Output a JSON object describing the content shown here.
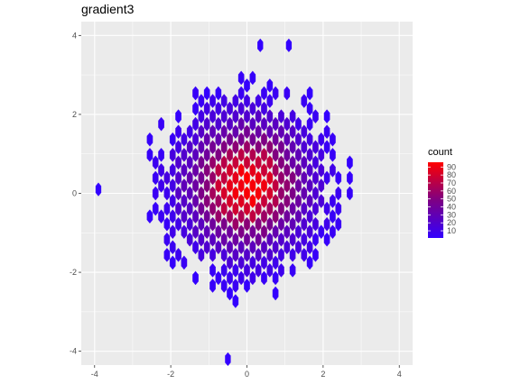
{
  "chart_data": {
    "type": "hexbin",
    "title": "gradient3",
    "xlabel": "",
    "ylabel": "",
    "xlim": [
      -4.35,
      4.35
    ],
    "ylim": [
      -4.35,
      4.35
    ],
    "x_ticks": [
      -4,
      -2,
      0,
      2,
      4
    ],
    "y_ticks": [
      -4,
      -2,
      0,
      2,
      4
    ],
    "grid": true,
    "panel_background": "#ebebeb",
    "gridline_color": "#ffffff",
    "color_scale": {
      "low": "#3300ff",
      "mid": "#800080",
      "high": "#ff0000",
      "midpoint": 50,
      "min": 1,
      "max": 96
    },
    "legend": {
      "title": "count",
      "position": "right",
      "breaks": [
        10,
        20,
        30,
        40,
        50,
        60,
        70,
        80,
        90
      ]
    },
    "bins": {
      "binwidth_x": 0.3,
      "binwidth_y": 0.26,
      "counts_description": "2D normal density, peak ~96 near (0, 0.2), isolated bins with count 1 toward edges",
      "isolated_points": [
        [
          -3.9,
          0.1
        ],
        [
          -0.5,
          -4.2
        ],
        [
          0.35,
          3.75
        ],
        [
          1.1,
          3.75
        ]
      ]
    }
  }
}
